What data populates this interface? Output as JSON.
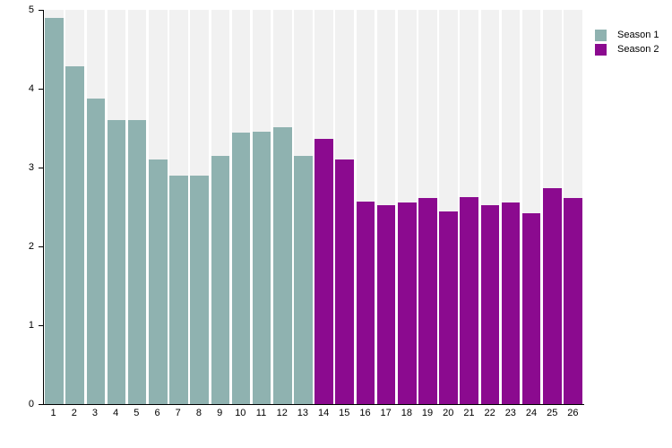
{
  "chart_data": {
    "type": "bar",
    "title": "",
    "xlabel": "",
    "ylabel": "",
    "x_categories": [
      "1",
      "2",
      "3",
      "4",
      "5",
      "6",
      "7",
      "8",
      "9",
      "10",
      "11",
      "12",
      "13",
      "14",
      "15",
      "16",
      "17",
      "18",
      "19",
      "20",
      "21",
      "22",
      "23",
      "24",
      "25",
      "26"
    ],
    "series": [
      {
        "name": "Season 1",
        "color": "#8FB2B0",
        "start_x": 1,
        "values": [
          4.9,
          4.28,
          3.87,
          3.6,
          3.6,
          3.1,
          2.9,
          2.9,
          3.15,
          3.44,
          3.46,
          3.51,
          3.15
        ]
      },
      {
        "name": "Season 2",
        "color": "#8B0A8F",
        "start_x": 14,
        "values": [
          3.36,
          3.1,
          2.57,
          2.52,
          2.56,
          2.61,
          2.44,
          2.62,
          2.52,
          2.56,
          2.42,
          2.74,
          2.61
        ]
      }
    ],
    "ylim": [
      0,
      5
    ],
    "yticks": [
      "0",
      "1",
      "2",
      "3",
      "4",
      "5"
    ],
    "grid": false,
    "column_band_color": "#f1f1f1",
    "background_color": "#ffffff",
    "legend": {
      "position": "top-right",
      "entries": [
        "Season 1",
        "Season 2"
      ]
    }
  }
}
